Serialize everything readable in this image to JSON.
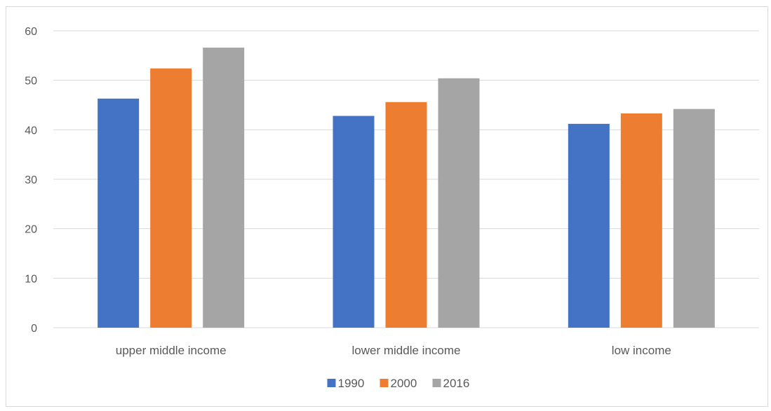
{
  "chart_data": {
    "type": "bar",
    "title": "",
    "xlabel": "",
    "ylabel": "",
    "categories": [
      "upper middle income",
      "lower middle income",
      "low income"
    ],
    "series": [
      {
        "name": "1990",
        "color": "#4472c4",
        "values": [
          46.3,
          42.8,
          41.2
        ]
      },
      {
        "name": "2000",
        "color": "#ed7d31",
        "values": [
          52.4,
          45.6,
          43.3
        ]
      },
      {
        "name": "2016",
        "color": "#a5a5a5",
        "values": [
          56.6,
          50.4,
          44.2
        ]
      }
    ],
    "ylim": [
      0,
      60
    ],
    "yticks": [
      0,
      10,
      20,
      30,
      40,
      50,
      60
    ],
    "grid": true,
    "gridline_color": "#d9d9d9",
    "legend_position": "bottom"
  }
}
